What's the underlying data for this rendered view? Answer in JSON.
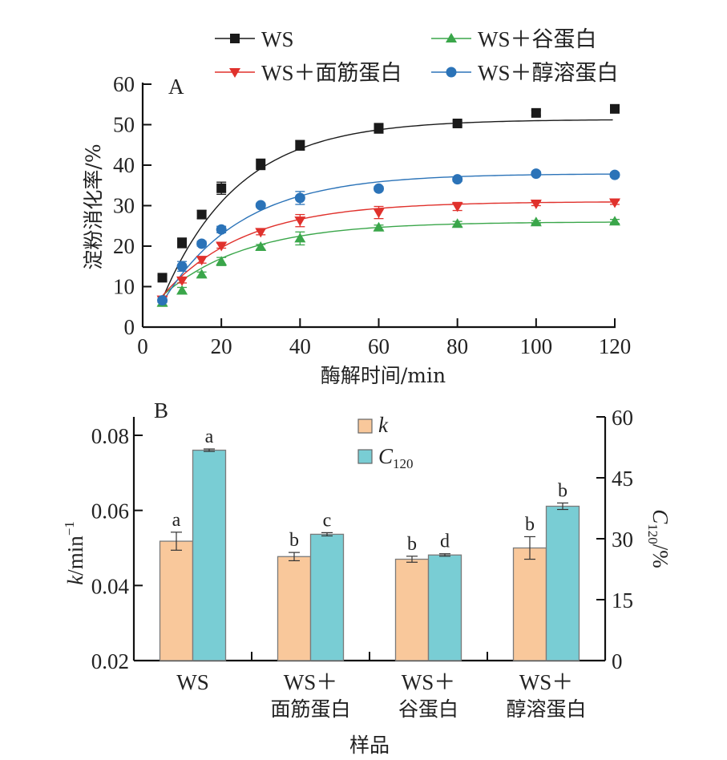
{
  "chart_data": [
    {
      "panel": "A",
      "type": "line",
      "xlabel": "酶解时间/min",
      "ylabel": "淀粉消化率/%",
      "xlim": [
        0,
        120
      ],
      "ylim": [
        0,
        60
      ],
      "xticks": [
        0,
        20,
        40,
        60,
        80,
        100,
        120
      ],
      "yticks": [
        0,
        10,
        20,
        30,
        40,
        50,
        60
      ],
      "legend_position": "top",
      "x": [
        5,
        10,
        15,
        20,
        30,
        40,
        60,
        80,
        100,
        120
      ],
      "series": [
        {
          "name": "WS",
          "color": "#1a1a1a",
          "marker": "square",
          "values": [
            12.2,
            20.8,
            27.8,
            34.3,
            40.2,
            44.9,
            49.1,
            50.3,
            52.9,
            53.9
          ],
          "errors": [
            0.6,
            1.2,
            1.0,
            1.5,
            1.3,
            1.2,
            1.2,
            0.6,
            0.6,
            0.6
          ],
          "fit": {
            "a": 51.3,
            "k": 0.0518,
            "t0": 2.2
          }
        },
        {
          "name": "WS＋谷蛋白",
          "color": "#3aa64a",
          "marker": "triangle-up",
          "values": [
            6.0,
            9.0,
            13.0,
            16.2,
            19.8,
            21.9,
            24.6,
            25.5,
            25.9,
            26.1
          ],
          "errors": [
            0.6,
            0.8,
            0.6,
            1.0,
            0.6,
            1.6,
            0.6,
            0.6,
            0.4,
            0.5
          ],
          "fit": {
            "a": 26.0,
            "k": 0.047,
            "t0": -2.5
          }
        },
        {
          "name": "WS＋面筋蛋白",
          "color": "#e0312c",
          "marker": "triangle-down",
          "values": [
            6.8,
            11.5,
            16.6,
            20.1,
            23.5,
            26.3,
            28.3,
            29.8,
            30.5,
            30.8
          ],
          "errors": [
            0.6,
            0.6,
            0.8,
            0.6,
            0.7,
            1.5,
            1.5,
            1.0,
            0.5,
            0.5
          ],
          "fit": {
            "a": 31.0,
            "k": 0.0477,
            "t0": -1.0
          }
        },
        {
          "name": "WS＋醇溶蛋白",
          "color": "#2b73b8",
          "marker": "circle",
          "values": [
            6.6,
            15.0,
            20.6,
            24.1,
            30.1,
            31.9,
            34.2,
            36.5,
            37.9,
            37.6
          ],
          "errors": [
            0.5,
            1.2,
            0.6,
            0.8,
            0.5,
            1.6,
            0.5,
            0.5,
            0.5,
            0.5
          ],
          "fit": {
            "a": 37.9,
            "k": 0.05,
            "t0": 1.5
          }
        }
      ]
    },
    {
      "panel": "B",
      "type": "bar",
      "xlabel": "样品",
      "ylabel_left": "k/min⁻¹",
      "ylabel_right": "C120/%",
      "ylim_left": [
        0.02,
        0.08
      ],
      "ylim_right": [
        0,
        60
      ],
      "yticks_left": [
        "0.02",
        "0.04",
        "0.06",
        "0.08"
      ],
      "yticks_right": [
        "0",
        "15",
        "30",
        "45",
        "60"
      ],
      "legend_position": "top-center",
      "categories": [
        [
          "WS"
        ],
        [
          "WS＋",
          "面筋蛋白"
        ],
        [
          "WS＋",
          "谷蛋白"
        ],
        [
          "WS＋",
          "醇溶蛋白"
        ]
      ],
      "series": [
        {
          "name": "k",
          "axis": "left",
          "color": "#f9c89b",
          "values": [
            0.0518,
            0.0477,
            0.047,
            0.05
          ],
          "errors": [
            0.0024,
            0.0011,
            0.0008,
            0.003
          ],
          "labels": [
            "a",
            "b",
            "b",
            "b"
          ]
        },
        {
          "name": "C120",
          "axis": "right",
          "color": "#79cdd4",
          "values": [
            51.8,
            31.1,
            26.0,
            38.0
          ],
          "errors": [
            0.3,
            0.4,
            0.3,
            0.8
          ],
          "labels": [
            "a",
            "c",
            "d",
            "b"
          ]
        }
      ]
    }
  ],
  "panel_labels": {
    "a": "A",
    "b": "B"
  },
  "legend_a": [
    "WS",
    "WS＋谷蛋白",
    "WS＋面筋蛋白",
    "WS＋醇溶蛋白"
  ],
  "legend_b": {
    "k": "k",
    "c_main": "C",
    "c_sub": "120"
  },
  "axis_b": {
    "left_main": "k",
    "left_rest": "/min",
    "left_sup": "−1",
    "right_main": "C",
    "right_sub": "120",
    "right_rest": "/%"
  }
}
